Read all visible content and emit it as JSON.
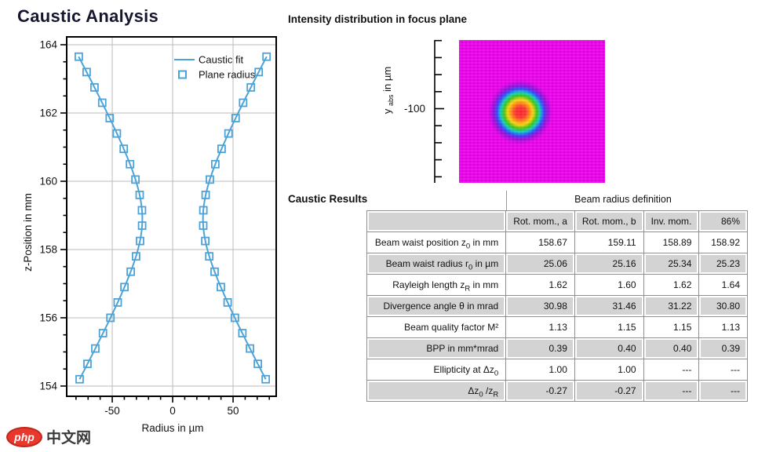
{
  "header": {
    "title": "Caustic Analysis"
  },
  "intensity_panel": {
    "title": "Intensity distribution in focus plane"
  },
  "results_panel": {
    "title": "Caustic Results",
    "group_header": "Beam radius definition"
  },
  "watermark": {
    "logo": "php",
    "text": "中文网",
    "logo_color": "#e8382d"
  },
  "chart_data": [
    {
      "id": "caustic-plot",
      "type": "scatter",
      "title": "Caustic Analysis",
      "xlabel": "Radius in µm",
      "ylabel": "z-Position in mm",
      "xlim": [
        -87.7,
        85.7
      ],
      "ylim": [
        153.7,
        164.23
      ],
      "xticks": [
        -50,
        0,
        50
      ],
      "xminor_step": 10,
      "yticks": [
        154,
        156,
        158,
        160,
        162,
        164
      ],
      "yminor_step": 0.5,
      "grid": true,
      "accent_color": "#4da3d8",
      "grid_color": "#bbbbbb",
      "frame_color": "#000000",
      "legend": [
        {
          "label": "Caustic fit",
          "type": "line"
        },
        {
          "label": "Plane radius",
          "type": "open-square"
        }
      ],
      "fit": {
        "z0_mm": 158.9,
        "r0_um": 25.1,
        "zR_mm": 1.62,
        "mirrored": true
      },
      "series": [
        {
          "name": "Plane radius",
          "marker": "open-square",
          "mirrored": true,
          "z_mm": [
            154.2,
            154.65,
            155.1,
            155.55,
            156.0,
            156.45,
            156.9,
            157.35,
            157.8,
            158.25,
            158.7,
            159.15,
            159.6,
            160.05,
            160.5,
            160.95,
            161.4,
            161.85,
            162.3,
            162.75,
            163.2,
            163.65
          ],
          "radius_um": [
            77.0,
            70.5,
            64.0,
            57.7,
            51.5,
            45.5,
            39.9,
            34.7,
            30.3,
            27.0,
            25.3,
            25.4,
            27.3,
            30.8,
            35.3,
            40.5,
            46.2,
            52.1,
            58.3,
            64.7,
            71.2,
            77.7
          ]
        }
      ]
    },
    {
      "id": "focus-intensity",
      "type": "heatmap",
      "title": "Intensity distribution in focus plane",
      "ylabel_parts": {
        "main": "y",
        "sub": "abs",
        "unit": " in µm"
      },
      "ytick_label": "-100",
      "ytick_major_index": 4,
      "ytick_count": 9,
      "background_color": "#ea00ea",
      "spot": {
        "center_frac": [
          0.42,
          0.505
        ],
        "ring_colors": [
          "#ff2222",
          "#ff9900",
          "#ffe300",
          "#2ed600",
          "#00ddb8",
          "#2747ff",
          "#8d10d8",
          "#ea00ea"
        ]
      }
    }
  ],
  "results_table": {
    "columns": [
      "Rot. mom., a",
      "Rot. mom., b",
      "Inv. mom.",
      "86%"
    ],
    "rows": [
      {
        "label": [
          {
            "t": "Beam waist position z"
          },
          {
            "s": "0"
          },
          {
            "t": " in mm"
          }
        ],
        "values": [
          "158.67",
          "159.11",
          "158.89",
          "158.92"
        ]
      },
      {
        "label": [
          {
            "t": "Beam waist radius r"
          },
          {
            "s": "0"
          },
          {
            "t": " in µm"
          }
        ],
        "values": [
          "25.06",
          "25.16",
          "25.34",
          "25.23"
        ]
      },
      {
        "label": [
          {
            "t": "Rayleigh length z"
          },
          {
            "s": "R"
          },
          {
            "t": " in mm"
          }
        ],
        "values": [
          "1.62",
          "1.60",
          "1.62",
          "1.64"
        ]
      },
      {
        "label": [
          {
            "t": "Divergence angle θ in mrad"
          }
        ],
        "values": [
          "30.98",
          "31.46",
          "31.22",
          "30.80"
        ]
      },
      {
        "label": [
          {
            "t": "Beam quality factor M²"
          }
        ],
        "values": [
          "1.13",
          "1.15",
          "1.15",
          "1.13"
        ]
      },
      {
        "label": [
          {
            "t": "BPP in mm*mrad"
          }
        ],
        "values": [
          "0.39",
          "0.40",
          "0.40",
          "0.39"
        ]
      },
      {
        "label": [
          {
            "t": "Ellipticity at Δz"
          },
          {
            "s": "0"
          }
        ],
        "values": [
          "1.00",
          "1.00",
          "---",
          "---"
        ]
      },
      {
        "label": [
          {
            "t": "Δz"
          },
          {
            "s": "0"
          },
          {
            "t": " /z"
          },
          {
            "s": "R"
          }
        ],
        "values": [
          "-0.27",
          "-0.27",
          "---",
          "---"
        ]
      }
    ],
    "header_bg": "#d3d3d3",
    "alt_row_bg": "#d3d3d3",
    "white_row_bg": "#ffffff",
    "border_color": "#8f8f8f"
  }
}
